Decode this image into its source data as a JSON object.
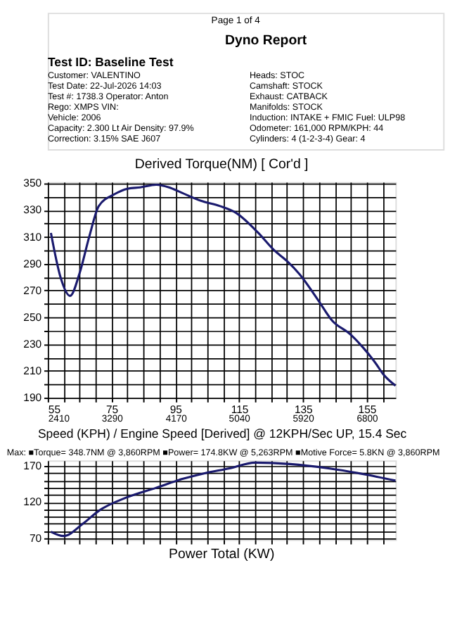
{
  "chart_data": [
    {
      "type": "line",
      "title": "Derived Torque(NM)     [ Cor'd ]",
      "xlabel": "Speed (KPH) / Engine Speed [Derived] @ 12KPH/Sec UP, 15.4 Sec",
      "annotations": [
        "Page 1 of 4",
        "Dyno Report",
        "Test ID: Baseline Test",
        "Customer: VALENTINO",
        "Test Date: 22-Jul-2026 14:03",
        "Test #: 1738.3   Operator: Anton",
        "Rego: XMPS   VIN:",
        "Vehicle: 2006",
        "Capacity: 2.300 Lt   Air Density: 97.9%",
        "Correction: 3.15% SAE J607",
        "Heads: STOC",
        "Camshaft: STOCK",
        "Exhaust: CATBACK",
        "Manifolds: STOCK",
        "Induction: INTAKE + FMIC   Fuel: ULP98",
        "Odometer: 161,000   RPM/KPH: 44",
        "Cylinders: 4 (1-2-3-4)   Gear: 4"
      ],
      "series": [
        {
          "color": "#1a1a6e",
          "x": [
            56,
            59,
            62,
            65,
            68,
            71,
            76,
            80,
            84,
            89,
            93,
            97,
            103,
            109,
            114,
            121,
            126,
            130,
            134,
            140,
            144,
            150,
            154,
            158,
            160,
            164
          ],
          "values": [
            313,
            280,
            266,
            283,
            310,
            333,
            342,
            346,
            347,
            349,
            347,
            343,
            337,
            333,
            328,
            313,
            300,
            292,
            282,
            262,
            248,
            237,
            227,
            215,
            208,
            199
          ]
        }
      ],
      "xlim": [
        55,
        164
      ],
      "ylim": [
        190,
        351
      ],
      "xticks": [
        55,
        {
          "value": 60,
          "label": null
        },
        {
          "value": 65,
          "label": null
        },
        {
          "value": 70,
          "label": null
        },
        75,
        {
          "value": 80,
          "label": null
        },
        {
          "value": 85,
          "label": null
        },
        {
          "value": 90,
          "label": null
        },
        95,
        {
          "value": 100,
          "label": null
        },
        {
          "value": 105,
          "label": null
        },
        {
          "value": 110,
          "label": null
        },
        115,
        {
          "value": 120,
          "label": null
        },
        {
          "value": 125,
          "label": null
        },
        {
          "value": 130,
          "label": null
        },
        135,
        {
          "value": 140,
          "label": null
        },
        {
          "value": 145,
          "label": null
        },
        {
          "value": 150,
          "label": null
        },
        155,
        {
          "value": 160,
          "label": null
        }
      ],
      "x2lim": [
        2410,
        7195
      ],
      "x2ticks": [
        2410,
        3290,
        4170,
        5040,
        5920,
        6800
      ],
      "yticks": [
        190,
        {
          "value": 200,
          "label": null
        },
        210,
        {
          "value": 220,
          "label": null
        },
        230,
        {
          "value": 240,
          "label": null
        },
        250,
        {
          "value": 260,
          "label": null
        },
        270,
        {
          "value": 280,
          "label": null
        },
        290,
        {
          "value": 300,
          "label": null
        },
        310,
        {
          "value": 320,
          "label": null
        },
        330,
        {
          "value": 340,
          "label": null
        },
        350
      ],
      "grid": true,
      "marker": "none",
      "line_style": "solid"
    },
    {
      "type": "line",
      "title": "Power Total (KW)",
      "annotations": [
        "Max:  ■Torque= 348.7NM @ 3,860RPM ■Power= 174.8KW @ 5,263RPM ■Motive Force= 5.8KN @ 3,860RPM"
      ],
      "series": [
        {
          "color": "#1a1a6e",
          "x": [
            56,
            60,
            66,
            71,
            80,
            89,
            97,
            104,
            112,
            120,
            131,
            143,
            154,
            164
          ],
          "values": [
            79,
            73,
            90,
            108,
            127,
            140,
            152,
            160,
            167,
            175,
            173,
            167,
            159,
            150
          ]
        }
      ],
      "xlim": [
        55,
        164
      ],
      "ylim": [
        68,
        178
      ],
      "xticks": [
        55,
        60,
        65,
        70,
        75,
        80,
        85,
        90,
        95,
        100,
        105,
        110,
        115,
        120,
        125,
        130,
        135,
        140,
        145,
        150,
        155,
        160
      ],
      "yticks": [
        70,
        {
          "value": 80,
          "label": null
        },
        {
          "value": 90,
          "label": null
        },
        {
          "value": 100,
          "label": null
        },
        {
          "value": 110,
          "label": null
        },
        120,
        {
          "value": 130,
          "label": null
        },
        {
          "value": 140,
          "label": null
        },
        {
          "value": 150,
          "label": null
        },
        {
          "value": 160,
          "label": null
        },
        170
      ],
      "tick_labels": "y",
      "grid": true,
      "marker": "none",
      "line_style": "solid"
    }
  ]
}
